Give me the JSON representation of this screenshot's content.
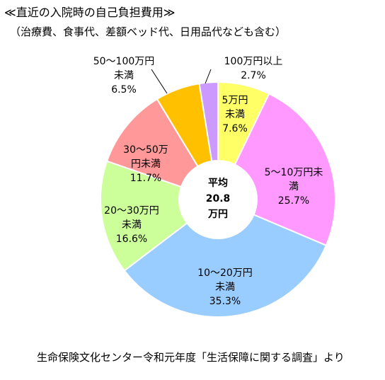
{
  "header": {
    "title": "≪直近の入院時の自己負担費用≫",
    "subtitle": "（治療費、食事代、差額ベッド代、日用品代なども含む）"
  },
  "center_label": {
    "line1": "平均",
    "line2": "20.8",
    "line3": "万円"
  },
  "footer": {
    "source": "生命保険文化センター令和元年度「生活保障に関する調査」より"
  },
  "chart_data": {
    "type": "pie",
    "title": "≪直近の入院時の自己負担費用≫",
    "subtitle": "（治療費、食事代、差額ベッド代、日用品代なども含む）",
    "center_text": "平均 20.8 万円",
    "slices": [
      {
        "label_lines": [
          "5万円",
          "未満"
        ],
        "value": 7.6,
        "value_text": "7.6%",
        "color": "#ffff66"
      },
      {
        "label_lines": [
          "5～10万円未",
          "満"
        ],
        "value": 25.7,
        "value_text": "25.7%",
        "color": "#ff99ff"
      },
      {
        "label_lines": [
          "10～20万円",
          "未満"
        ],
        "value": 35.3,
        "value_text": "35.3%",
        "color": "#99ccff"
      },
      {
        "label_lines": [
          "20～30万円",
          "未満"
        ],
        "value": 16.6,
        "value_text": "16.6%",
        "color": "#ccff99"
      },
      {
        "label_lines": [
          "30～50万",
          "円未満"
        ],
        "value": 11.7,
        "value_text": "11.7%",
        "color": "#ff9999"
      },
      {
        "label_lines": [
          "50～100万円",
          "未満"
        ],
        "value": 6.5,
        "value_text": "6.5%",
        "color": "#ffc000"
      },
      {
        "label_lines": [
          "100万円以上"
        ],
        "value": 2.7,
        "value_text": "2.7%",
        "color": "#cc99ff"
      }
    ],
    "legend": "none"
  }
}
